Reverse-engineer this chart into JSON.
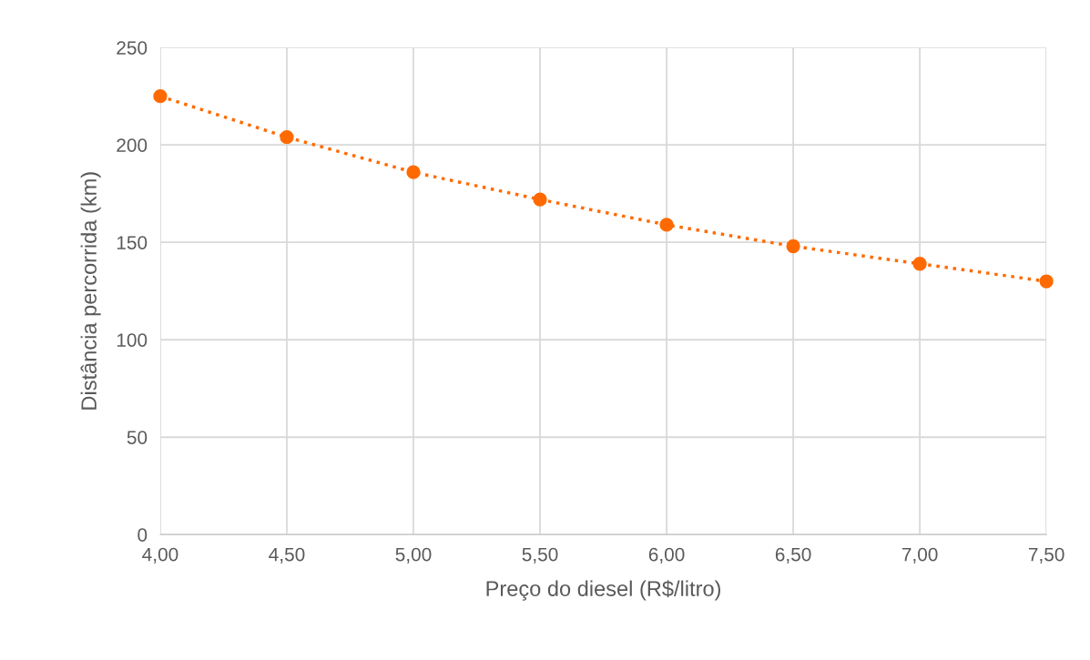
{
  "chart_data": {
    "type": "line",
    "xlabel": "Preço do diesel (R$/litro)",
    "ylabel": "Distância percorrida (km)",
    "x": [
      4.0,
      4.5,
      5.0,
      5.5,
      6.0,
      6.5,
      7.0,
      7.5
    ],
    "series": [
      {
        "color": "#ff6a00",
        "values": [
          225,
          204,
          186,
          172,
          159,
          148,
          139,
          130
        ]
      }
    ],
    "xlim": [
      4.0,
      7.5
    ],
    "xticks": [
      {
        "value": 4.0,
        "label": "4,00"
      },
      {
        "value": 4.5,
        "label": "4,50"
      },
      {
        "value": 5.0,
        "label": "5,00"
      },
      {
        "value": 5.5,
        "label": "5,50"
      },
      {
        "value": 6.0,
        "label": "6,00"
      },
      {
        "value": 6.5,
        "label": "6,50"
      },
      {
        "value": 7.0,
        "label": "7,00"
      },
      {
        "value": 7.5,
        "label": "7,50"
      }
    ],
    "ylim": [
      0,
      250
    ],
    "yticks": [
      0,
      50,
      100,
      150,
      200,
      250
    ],
    "grid": true,
    "marker": "circle",
    "line_style": "dotted"
  }
}
